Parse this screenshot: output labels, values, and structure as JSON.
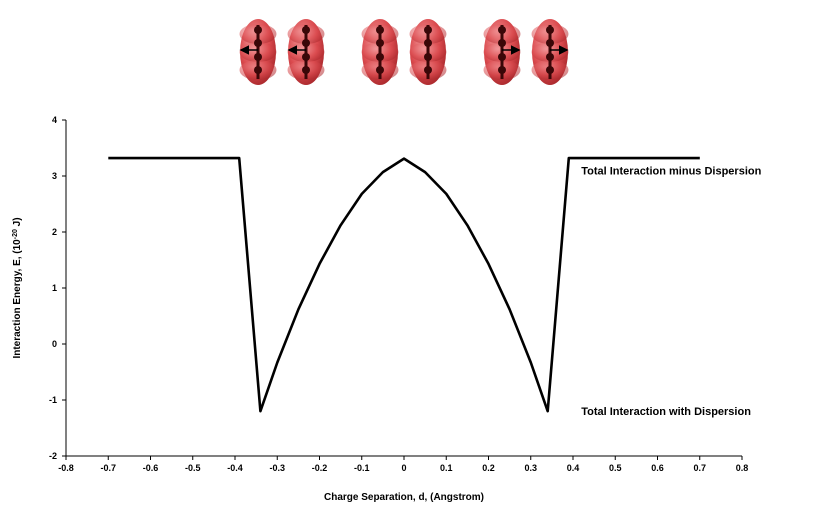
{
  "chart_data": {
    "type": "line",
    "title": "",
    "xlabel": "Charge Separation, d, (Angstrom)",
    "ylabel_main": "Interaction Energy, E, (10",
    "ylabel_exp": "-20",
    "ylabel_tail": " J)",
    "xlim": [
      -0.8,
      0.8
    ],
    "ylim": [
      -2,
      4
    ],
    "x_ticks": [
      "-0.8",
      "-0.7",
      "-0.6",
      "-0.5",
      "-0.4",
      "-0.3",
      "-0.2",
      "-0.1",
      "0",
      "0.1",
      "0.2",
      "0.3",
      "0.4",
      "0.5",
      "0.6",
      "0.7",
      "0.8"
    ],
    "y_ticks": [
      "4",
      "3",
      "2",
      "1",
      "0",
      "-1",
      "-2"
    ],
    "grid": false,
    "series": [
      {
        "x": [
          -0.7,
          -0.39,
          -0.34,
          -0.3,
          -0.25,
          -0.2,
          -0.15,
          -0.1,
          -0.05,
          0,
          0.05,
          0.1,
          0.15,
          0.2,
          0.25,
          0.3,
          0.34,
          0.39,
          0.7
        ],
        "y": [
          3.32,
          3.32,
          -1.2,
          -0.33,
          0.62,
          1.43,
          2.12,
          2.68,
          3.07,
          3.31,
          3.07,
          2.68,
          2.12,
          1.43,
          0.62,
          -0.33,
          -1.2,
          3.32,
          3.32
        ]
      }
    ],
    "annotations": [
      {
        "text": "Total Interaction minus Dispersion",
        "x": 0.41,
        "y": 3.1
      },
      {
        "text": "Total Interaction with Dispersion",
        "x": 0.41,
        "y": -1.2
      }
    ],
    "molecule_pairs": [
      {
        "arrows": "outward"
      },
      {
        "arrows": "none"
      },
      {
        "arrows": "inward"
      }
    ],
    "molecule_color": "#d9464a",
    "atom_color": "#3a0708",
    "line_color": "#000000"
  }
}
